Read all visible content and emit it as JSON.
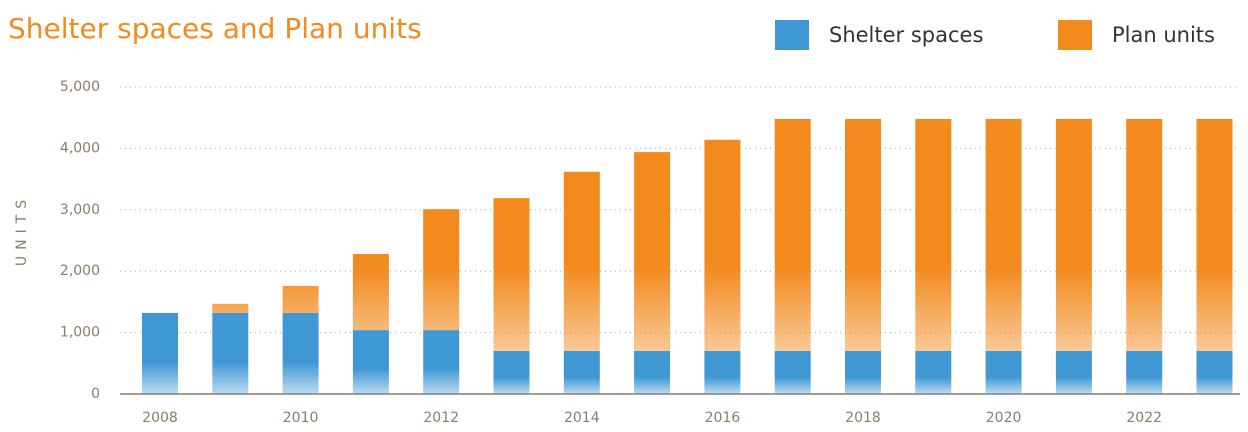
{
  "chart_data": {
    "type": "stacked_bar",
    "title": "Shelter spaces and Plan units",
    "y_label": "UNITS",
    "categories": [
      "2008",
      null,
      "2010",
      null,
      "2012",
      null,
      "2014",
      null,
      "2016",
      null,
      "2018",
      null,
      "2020",
      null,
      "2022",
      null
    ],
    "series": [
      {
        "name": "Shelter spaces",
        "color": "#3f97d3",
        "values": [
          1320,
          1320,
          1320,
          1040,
          1040,
          700,
          700,
          700,
          700,
          700,
          700,
          700,
          700,
          700,
          700,
          700
        ]
      },
      {
        "name": "Plan units",
        "color": "#f28a1e",
        "values": [
          0,
          150,
          440,
          1240,
          1970,
          2490,
          2920,
          3240,
          3440,
          3780,
          3780,
          3780,
          3780,
          3780,
          3780,
          3780
        ]
      }
    ],
    "ylim": [
      0,
      5000
    ],
    "yticks": [
      0,
      {
        "value": 1000,
        "label": "1,000"
      },
      {
        "value": 2000,
        "label": "2,000"
      },
      {
        "value": 3000,
        "label": "3,000"
      },
      {
        "value": 4000,
        "label": "4,000"
      },
      {
        "value": 5000,
        "label": "5,000"
      }
    ],
    "grid": true,
    "legend": "top-right"
  }
}
